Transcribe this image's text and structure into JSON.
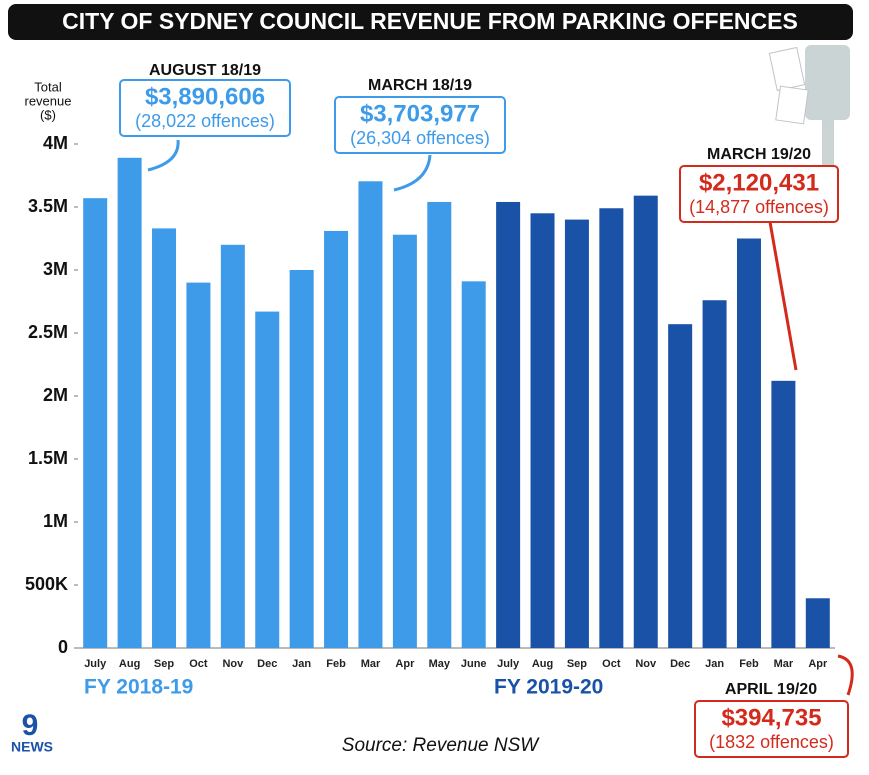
{
  "chart_data": {
    "type": "bar",
    "title": "CITY OF SYDNEY COUNCIL REVENUE FROM PARKING OFFENCES",
    "y_label": [
      "Total",
      "revenue",
      "($)"
    ],
    "categories": [
      "July",
      "Aug",
      "Sep",
      "Oct",
      "Nov",
      "Dec",
      "Jan",
      "Feb",
      "Mar",
      "Apr",
      "May",
      "June",
      "July",
      "Aug",
      "Sep",
      "Oct",
      "Nov",
      "Dec",
      "Jan",
      "Feb",
      "Mar",
      "Apr"
    ],
    "series": [
      {
        "name": "FY 2018-19",
        "color": "#3d9bea",
        "values": [
          3570000,
          3890606,
          3330000,
          2900000,
          3200000,
          2670000,
          3000000,
          3310000,
          3703977,
          3280000,
          3540000,
          2910000,
          null,
          null,
          null,
          null,
          null,
          null,
          null,
          null,
          null,
          null
        ]
      },
      {
        "name": "FY 2019-20",
        "color": "#1a52a8",
        "values": [
          null,
          null,
          null,
          null,
          null,
          null,
          null,
          null,
          null,
          null,
          null,
          null,
          3540000,
          3450000,
          3400000,
          3490000,
          3590000,
          2570000,
          2760000,
          3250000,
          2120431,
          394735
        ]
      }
    ],
    "ylim": [
      0,
      4000000
    ],
    "yticks": [
      0,
      {
        "value": 500000,
        "label": "500K"
      },
      {
        "value": 1000000,
        "label": "1M"
      },
      {
        "value": 1500000,
        "label": "1.5M"
      },
      {
        "value": 2000000,
        "label": "2M"
      },
      {
        "value": 2500000,
        "label": "2.5M"
      },
      {
        "value": 3000000,
        "label": "3M"
      },
      {
        "value": 3500000,
        "label": "3.5M"
      },
      {
        "value": 4000000,
        "label": "4M"
      }
    ],
    "annotations": [
      {
        "label": "AUGUST 18/19",
        "amount": "$3,890,606",
        "offences": "(28,022 offences)",
        "color": "#3d9bea"
      },
      {
        "label": "MARCH 18/19",
        "amount": "$3,703,977",
        "offences": "(26,304 offences)",
        "color": "#3d9bea"
      },
      {
        "label": "MARCH 19/20",
        "amount": "$2,120,431",
        "offences": "(14,877 offences)",
        "color": "#d42a1c"
      },
      {
        "label": "APRIL 19/20",
        "amount": "$394,735",
        "offences": "(1832 offences)",
        "color": "#d42a1c"
      }
    ],
    "source": "Source: Revenue NSW",
    "logo": [
      "9",
      "NEWS"
    ]
  }
}
